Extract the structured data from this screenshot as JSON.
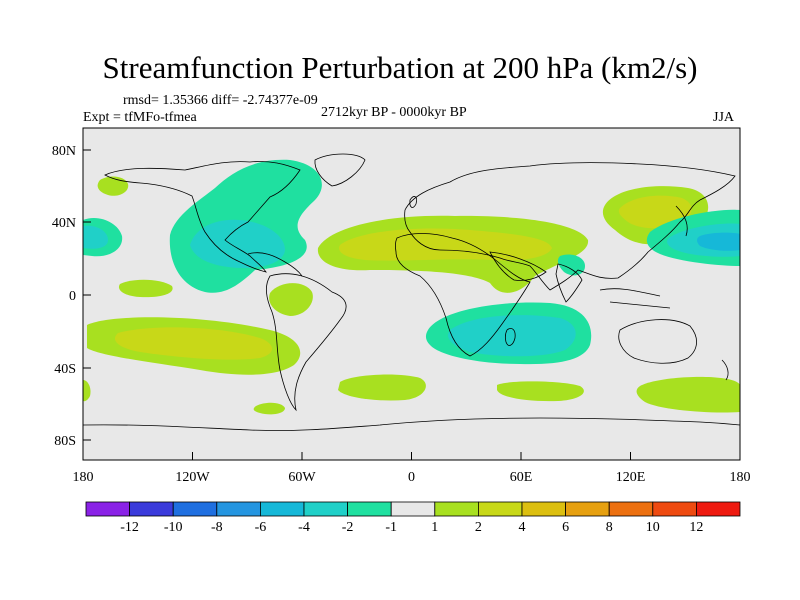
{
  "title": "Streamfunction Perturbation at 200 hPa (km2/s)",
  "stats": "rmsd= 1.35366 diff= -2.74377e-09",
  "experiment": "Expt = tfMFo-tfmea",
  "period": "2712kyr BP - 0000kyr BP",
  "season": "JJA",
  "x_ticks": [
    "180",
    "120W",
    "60W",
    "0",
    "60E",
    "120E",
    "180"
  ],
  "y_ticks": [
    "80N",
    "40N",
    "0",
    "40S",
    "80S"
  ],
  "colorbar": {
    "colors": [
      "#8a22e6",
      "#3b3bdb",
      "#1f6fe0",
      "#2495e0",
      "#16b8d8",
      "#20d0c8",
      "#1fe0a0",
      "#e8e8e8",
      "#a8e020",
      "#c8d818",
      "#dcbf10",
      "#e6a010",
      "#ec7010",
      "#ee4a10",
      "#ee1a10"
    ],
    "labels": [
      "-12",
      "-10",
      "-8",
      "-6",
      "-4",
      "-2",
      "-1",
      "1",
      "2",
      "4",
      "6",
      "8",
      "10",
      "12"
    ]
  }
}
